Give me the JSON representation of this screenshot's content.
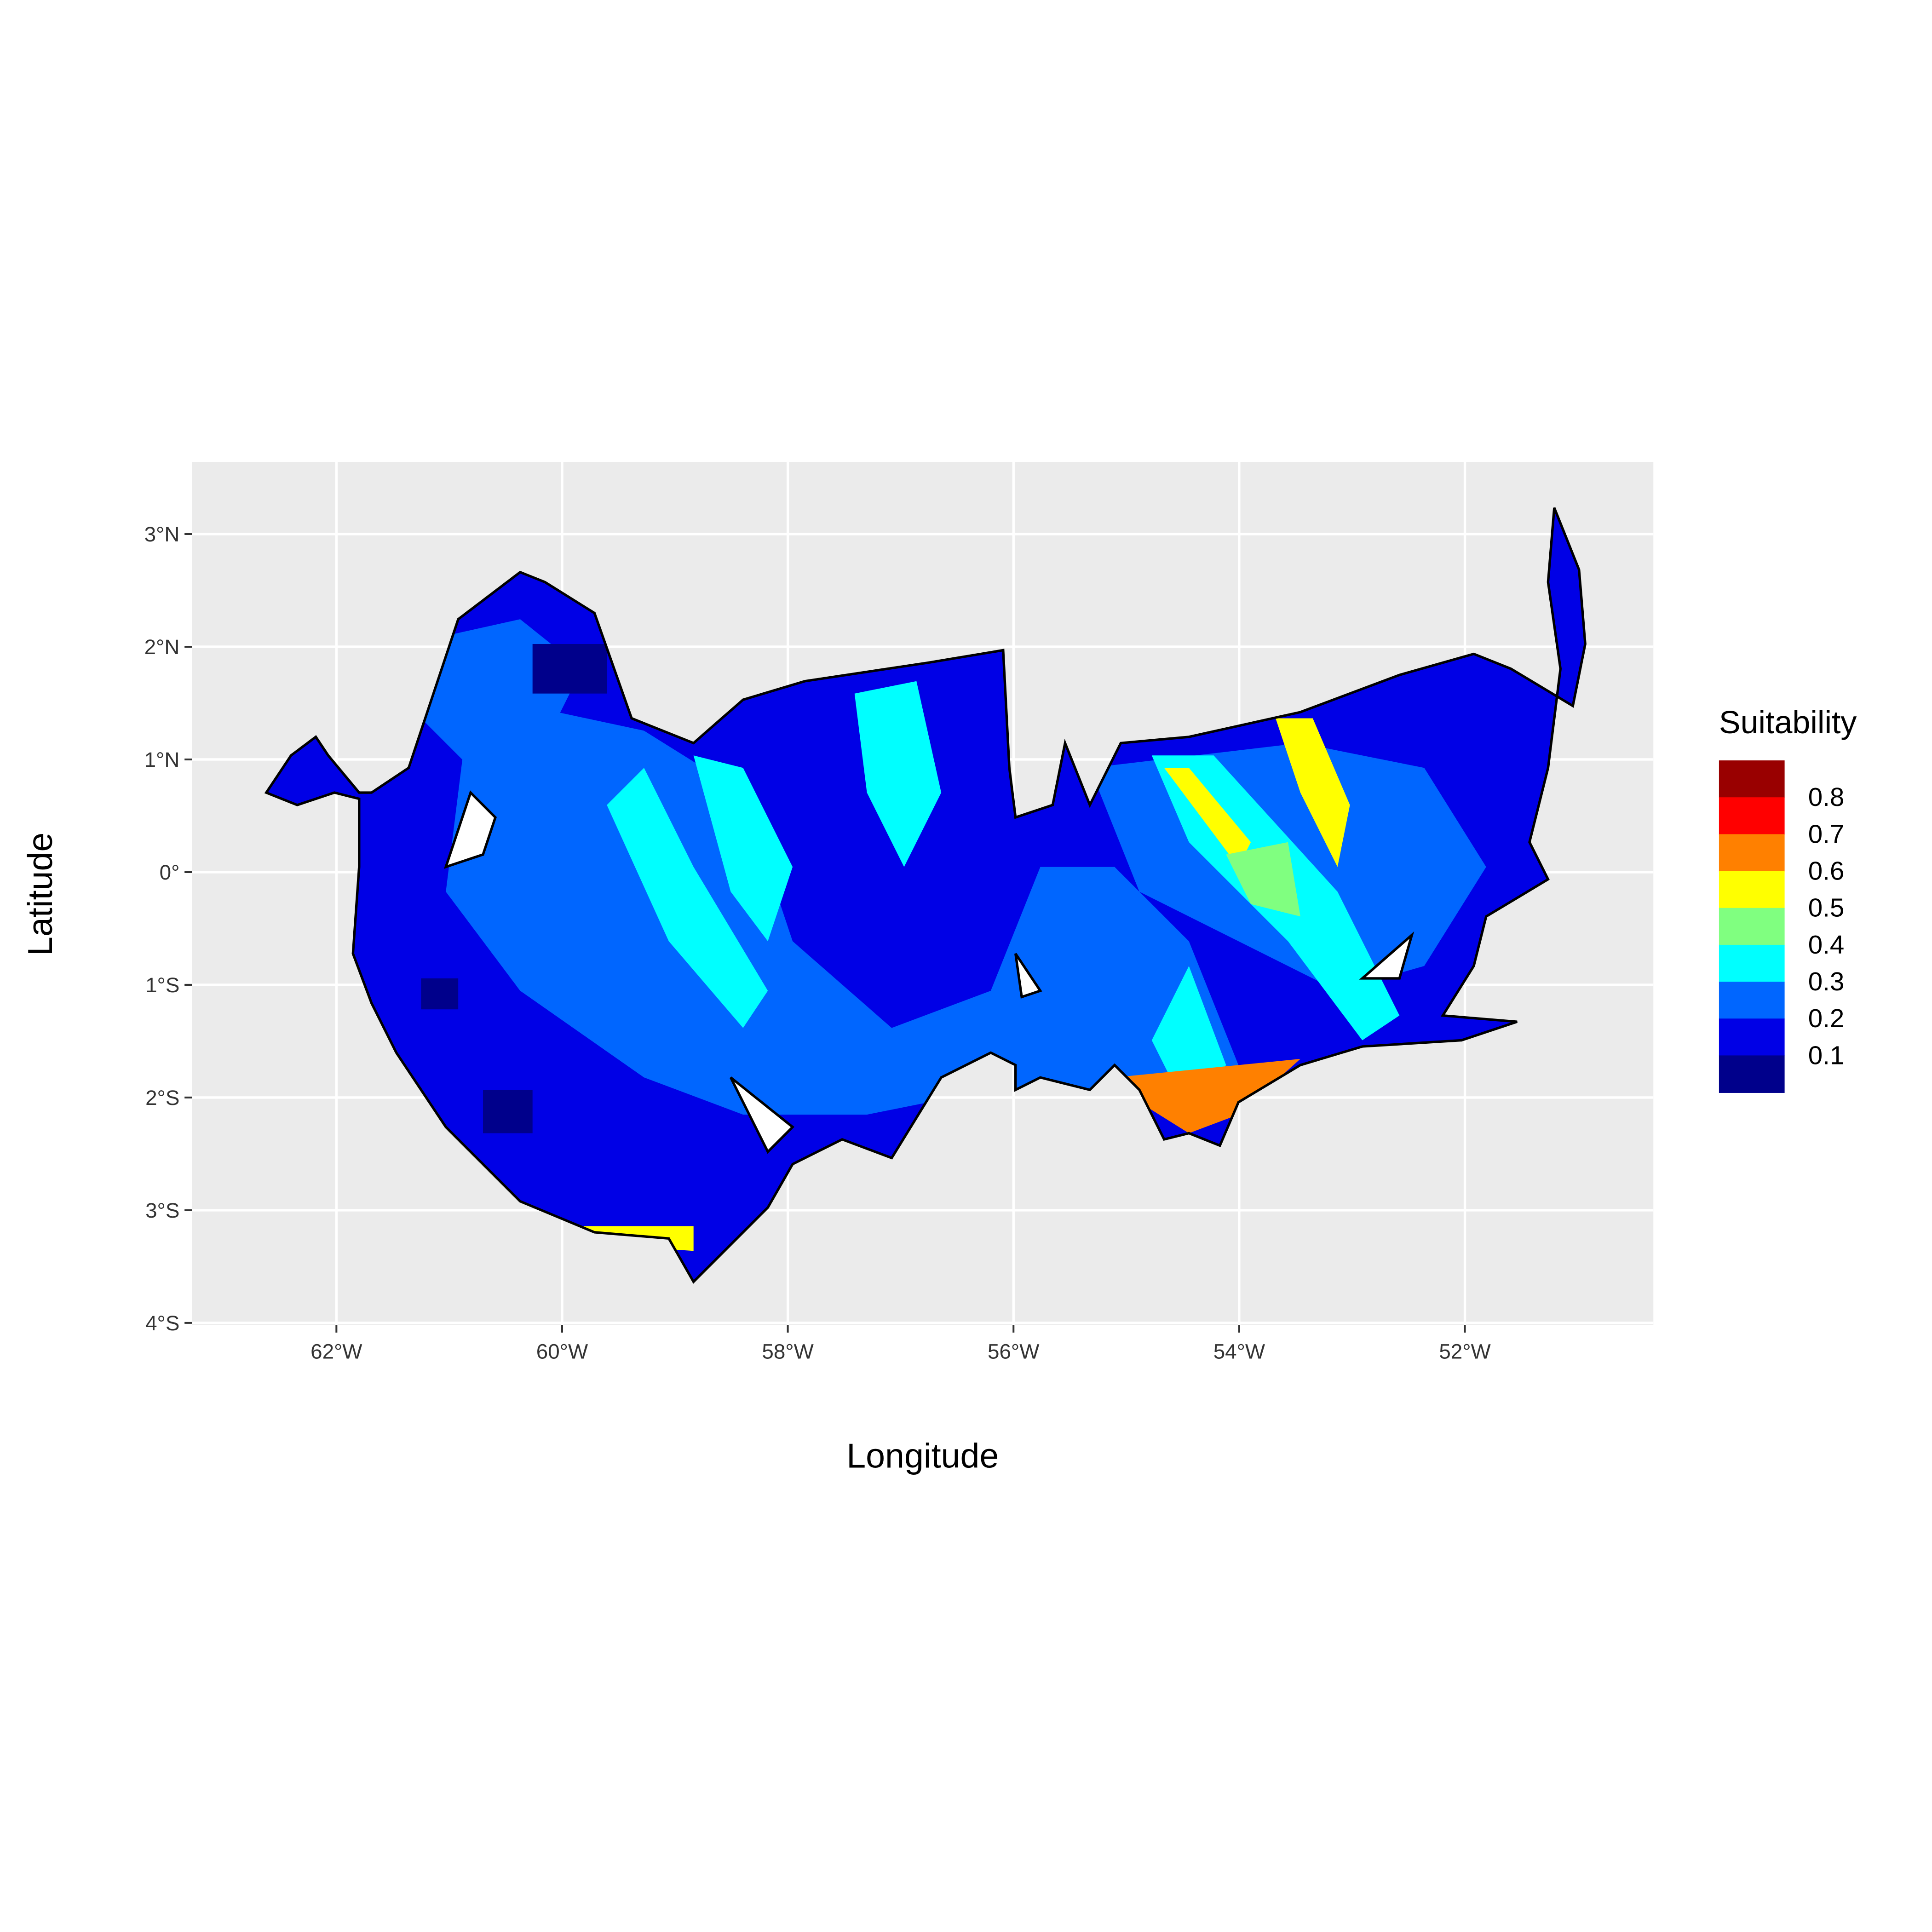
{
  "map": {
    "x_label": "Longitude",
    "y_label": "Latitude",
    "xlim": [
      -63.28,
      -50.33
    ],
    "ylim": [
      -4.02,
      3.64
    ],
    "xticks": [
      {
        "value": -62,
        "label": "62°W"
      },
      {
        "value": -60,
        "label": "60°W"
      },
      {
        "value": -58,
        "label": "58°W"
      },
      {
        "value": -56,
        "label": "56°W"
      },
      {
        "value": -54,
        "label": "54°W"
      },
      {
        "value": -52,
        "label": "52°W"
      }
    ],
    "yticks": [
      {
        "value": 3,
        "label": "3°N"
      },
      {
        "value": 2,
        "label": "2°N"
      },
      {
        "value": 1,
        "label": "1°N"
      },
      {
        "value": 0,
        "label": "0°"
      },
      {
        "value": -1,
        "label": "1°S"
      },
      {
        "value": -2,
        "label": "2°S"
      },
      {
        "value": -3,
        "label": "3°S"
      },
      {
        "value": -4,
        "label": "4°S"
      }
    ],
    "grid": true,
    "legend": {
      "title": "Suitability",
      "breaks": [
        0.8,
        0.7,
        0.6,
        0.5,
        0.4,
        0.3,
        0.2,
        0.1
      ],
      "colors": [
        "#990000",
        "#ff0000",
        "#ff8000",
        "#ffff00",
        "#80ff80",
        "#00ffff",
        "#0066ff",
        "#0000e6",
        "#00008b"
      ]
    }
  }
}
